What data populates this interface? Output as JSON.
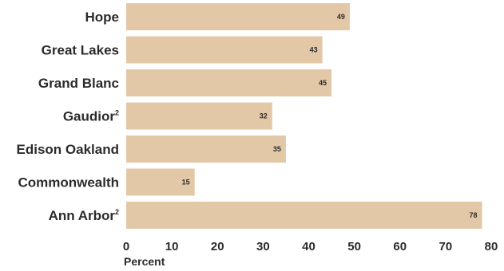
{
  "chart_data": {
    "type": "bar",
    "orientation": "horizontal",
    "categories": [
      "Hope",
      "Great Lakes",
      "Grand Blanc",
      "Gaudior",
      "Edison Oakland",
      "Commonwealth",
      "Ann Arbor"
    ],
    "category_superscripts": [
      "",
      "",
      "",
      "2",
      "",
      "",
      "2"
    ],
    "values": [
      49,
      43,
      45,
      32,
      35,
      15,
      78
    ],
    "xlabel": "Percent",
    "xlim": [
      0,
      80
    ],
    "xticks": [
      0,
      10,
      20,
      30,
      40,
      50,
      60,
      70,
      80
    ],
    "grid": false,
    "legend": "none",
    "bar_color": "#e3c8a8",
    "text_color": "#2b2b2b"
  }
}
